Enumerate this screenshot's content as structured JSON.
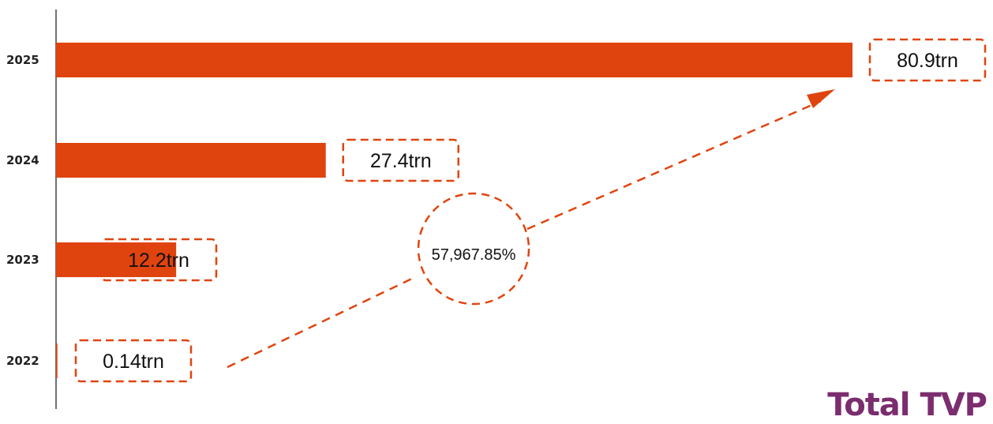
{
  "chart_data": {
    "type": "bar",
    "orientation": "horizontal",
    "categories": [
      "2025",
      "2024",
      "2023",
      "2022"
    ],
    "values": [
      80.9,
      27.4,
      12.2,
      0.14
    ],
    "value_labels": [
      "80.9trn",
      "27.4trn",
      "12.2trn",
      "0.14trn"
    ],
    "xlim": [
      0,
      80.9
    ],
    "grid": false,
    "annotation": {
      "text": "57,967.85%",
      "from_category": "2022",
      "to_category": "2025"
    },
    "colors": {
      "bar": "#e0440e",
      "annotation": "#e0440e"
    }
  },
  "brand": {
    "text": "Total TVP",
    "color": "#7b2d6e"
  }
}
